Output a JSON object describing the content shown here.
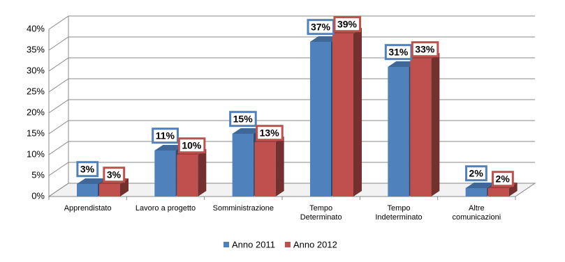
{
  "chart_data": {
    "type": "bar3d",
    "categories": [
      "Apprendistato",
      "Lavoro a progetto",
      "Somministrazione",
      "Tempo\nDeterminato",
      "Tempo\nIndeterminato",
      "Altre\ncomunicazioni"
    ],
    "series": [
      {
        "name": "Anno 2011",
        "color": "#4f81bd",
        "values": [
          3,
          11,
          15,
          37,
          31,
          2
        ],
        "value_labels": [
          "3%",
          "11%",
          "15%",
          "37%",
          "31%",
          "2%"
        ]
      },
      {
        "name": "Anno 2012",
        "color": "#c0504d",
        "values": [
          3,
          10,
          13,
          39,
          33,
          2
        ],
        "value_labels": [
          "3%",
          "10%",
          "13%",
          "39%",
          "33%",
          "2%"
        ]
      }
    ],
    "ylim": [
      0,
      40
    ],
    "yticks": [
      {
        "value": 0,
        "label": "0%"
      },
      {
        "value": 5,
        "label": "5%"
      },
      {
        "value": 10,
        "label": "10%"
      },
      {
        "value": 15,
        "label": "15%"
      },
      {
        "value": 20,
        "label": "20%"
      },
      {
        "value": 25,
        "label": "25%"
      },
      {
        "value": 30,
        "label": "30%"
      },
      {
        "value": 35,
        "label": "35%"
      },
      {
        "value": 40,
        "label": "40%"
      }
    ],
    "grid": true,
    "legend": "bottom"
  }
}
